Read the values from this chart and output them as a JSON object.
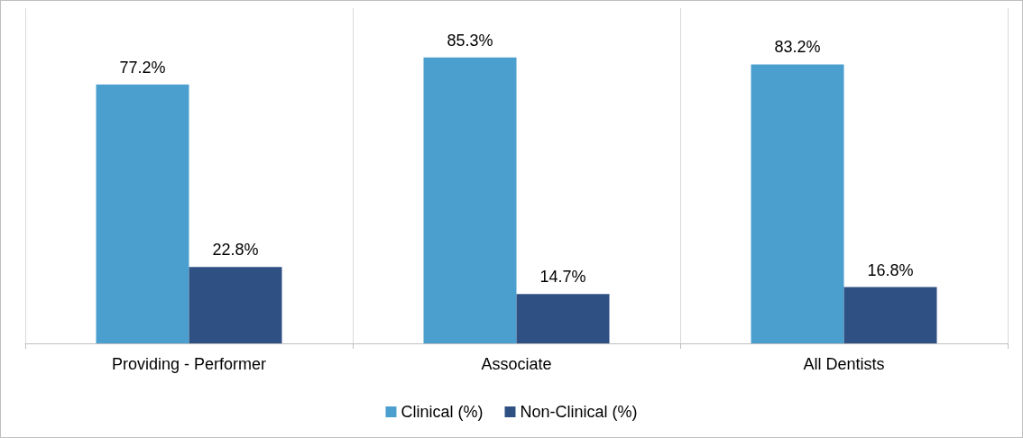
{
  "chart_data": {
    "type": "bar",
    "categories": [
      "Providing - Performer",
      "Associate",
      "All Dentists"
    ],
    "series": [
      {
        "name": "Clinical (%)",
        "color": "#4a9fcf",
        "values": [
          77.2,
          85.3,
          83.2
        ],
        "value_labels": [
          "77.2%",
          "85.3%",
          "83.2%"
        ]
      },
      {
        "name": "Non-Clinical (%)",
        "color": "#2f5083",
        "values": [
          22.8,
          14.7,
          16.8
        ],
        "value_labels": [
          "22.8%",
          "14.7%",
          "16.8%"
        ]
      }
    ],
    "grid": "x",
    "legend": "bottom"
  }
}
